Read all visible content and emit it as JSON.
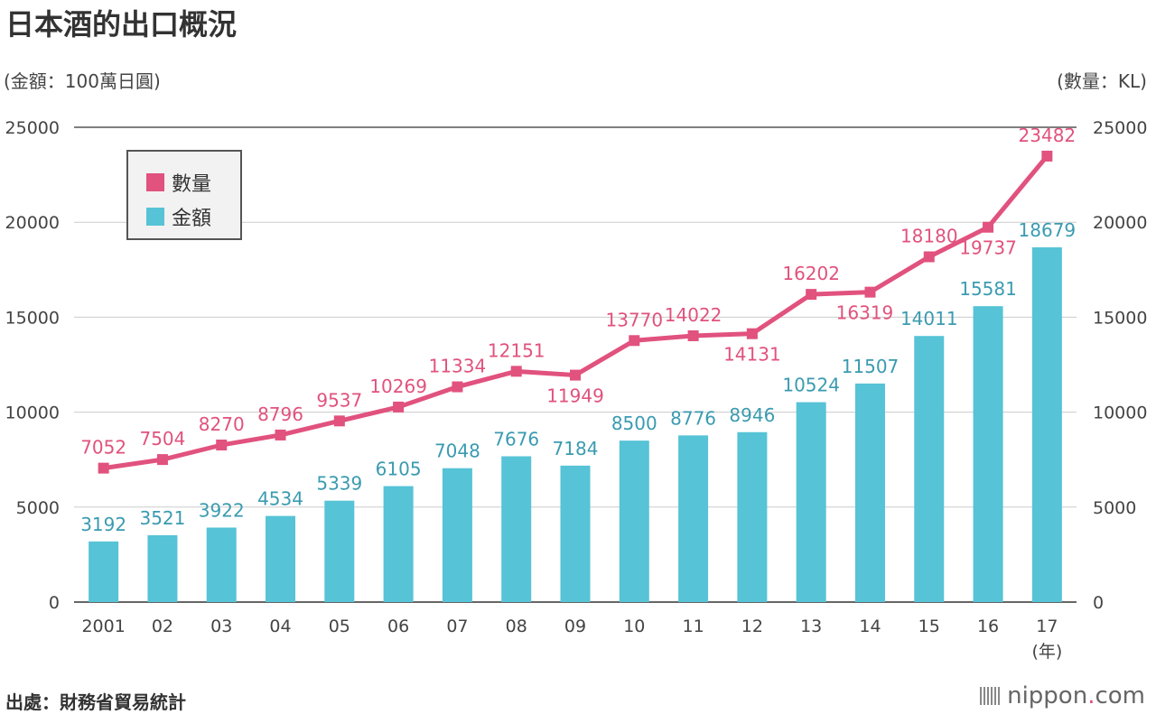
{
  "title": "日本酒的出口概況",
  "unit_left": "(金額：100萬日圓)",
  "unit_right": "(數量：KL)",
  "source": "出處：財務省貿易統計",
  "brand": {
    "prefix": "nippon",
    "dot": ".",
    "suffix": "com"
  },
  "colors": {
    "bar": "#56c3d6",
    "bar_label": "#3a9bb0",
    "line": "#e1527e",
    "line_label": "#e1527e"
  },
  "chart_data": {
    "type": "bar+line",
    "categories": [
      "2001",
      "02",
      "03",
      "04",
      "05",
      "06",
      "07",
      "08",
      "09",
      "10",
      "11",
      "12",
      "13",
      "14",
      "15",
      "16",
      "17"
    ],
    "x_unit_label": "(年)",
    "ylim": [
      0,
      25000
    ],
    "y_ticks": [
      0,
      5000,
      10000,
      15000,
      20000,
      25000
    ],
    "series": [
      {
        "name": "金額",
        "type": "bar",
        "axis": "left",
        "values": [
          3192,
          3521,
          3922,
          4534,
          5339,
          6105,
          7048,
          7676,
          7184,
          8500,
          8776,
          8946,
          10524,
          11507,
          14011,
          15581,
          18679
        ]
      },
      {
        "name": "數量",
        "type": "line",
        "axis": "right",
        "values": [
          7052,
          7504,
          8270,
          8796,
          9537,
          10269,
          11334,
          12151,
          11949,
          13770,
          14022,
          14131,
          16202,
          16319,
          18180,
          19737,
          23482
        ]
      }
    ],
    "legend": [
      "數量",
      "金額"
    ],
    "legend_position": "top-left"
  }
}
